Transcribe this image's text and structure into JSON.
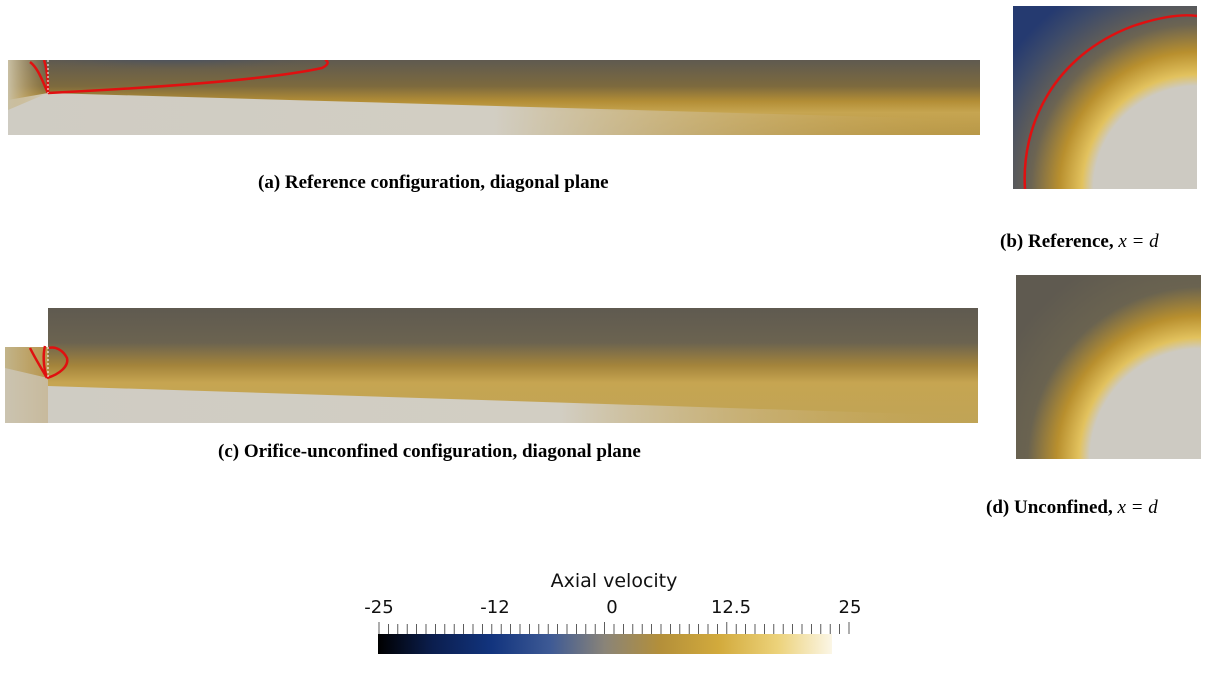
{
  "panels": {
    "a": {
      "label": "(a)",
      "caption": "Reference configuration, diagonal plane"
    },
    "b": {
      "label": "(b)",
      "caption": "Reference,",
      "math": "x = d"
    },
    "c": {
      "label": "(c)",
      "caption": "Orifice-unconfined configuration, diagonal plane"
    },
    "d": {
      "label": "(d)",
      "caption": "Unconfined,",
      "math": "x = d"
    }
  },
  "colorbar": {
    "title": "Axial velocity",
    "ticks": [
      "-25",
      "-12",
      "0",
      "12.5",
      "25"
    ],
    "min": -25,
    "max": 25,
    "colors": {
      "neg": "#0a2a6e",
      "zero": "#8a8478",
      "pos": "#f6f0d6",
      "contour": "#e01010"
    }
  }
}
